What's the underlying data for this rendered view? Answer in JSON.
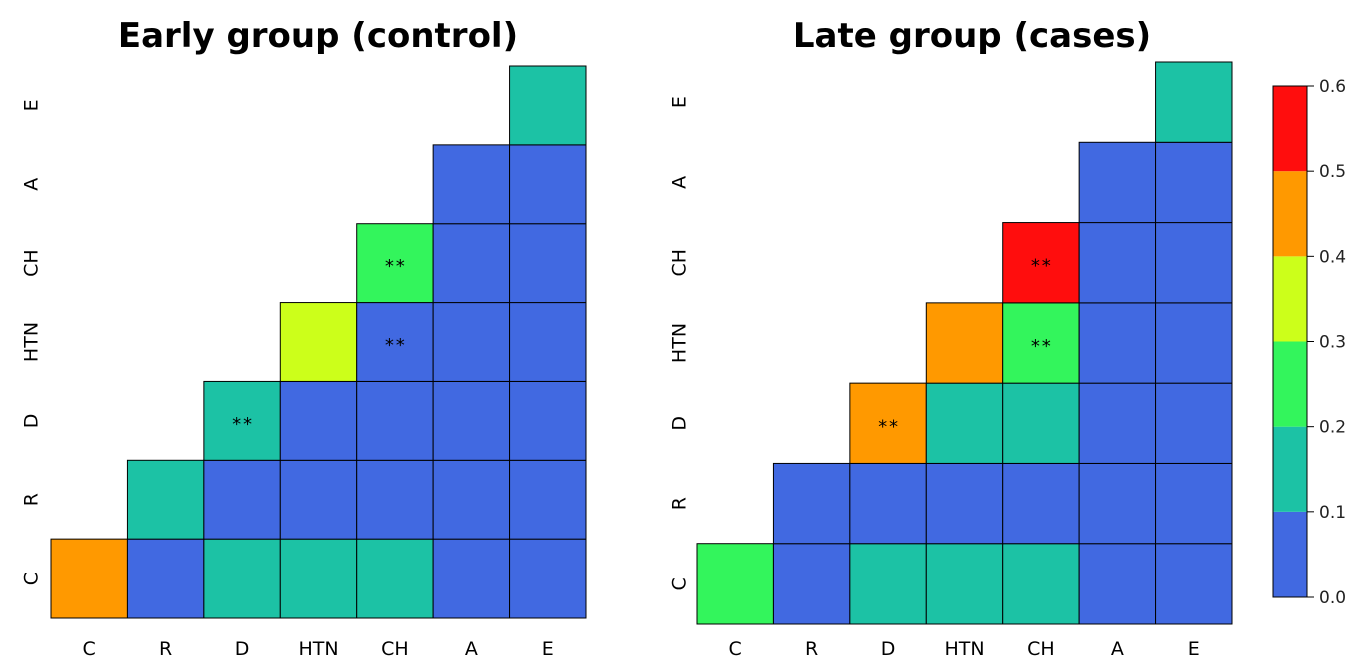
{
  "chart_data": [
    {
      "type": "heatmap",
      "title": "Early group (control)",
      "x_labels": [
        "C",
        "R",
        "D",
        "HTN",
        "CH",
        "A",
        "E"
      ],
      "y_labels": [
        "C",
        "R",
        "D",
        "HTN",
        "CH",
        "A",
        "E"
      ],
      "values": [
        [
          0.45,
          0.05,
          0.15,
          0.15,
          0.15,
          0.05,
          0.05
        ],
        [
          null,
          0.15,
          0.05,
          0.05,
          0.05,
          0.05,
          0.05
        ],
        [
          null,
          null,
          0.15,
          0.05,
          0.05,
          0.05,
          0.05
        ],
        [
          null,
          null,
          null,
          0.35,
          0.05,
          0.05,
          0.05
        ],
        [
          null,
          null,
          null,
          null,
          0.25,
          0.05,
          0.05
        ],
        [
          null,
          null,
          null,
          null,
          null,
          0.05,
          0.05
        ],
        [
          null,
          null,
          null,
          null,
          null,
          null,
          0.15
        ]
      ],
      "annotations": [
        {
          "x": "D",
          "y": "D",
          "text": "**"
        },
        {
          "x": "CH",
          "y": "HTN",
          "text": "**"
        },
        {
          "x": "CH",
          "y": "CH",
          "text": "**"
        }
      ]
    },
    {
      "type": "heatmap",
      "title": "Late group (cases)",
      "x_labels": [
        "C",
        "R",
        "D",
        "HTN",
        "CH",
        "A",
        "E"
      ],
      "y_labels": [
        "C",
        "R",
        "D",
        "HTN",
        "CH",
        "A",
        "E"
      ],
      "values": [
        [
          0.25,
          0.05,
          0.15,
          0.15,
          0.15,
          0.05,
          0.05
        ],
        [
          null,
          0.05,
          0.05,
          0.05,
          0.05,
          0.05,
          0.05
        ],
        [
          null,
          null,
          0.45,
          0.15,
          0.15,
          0.05,
          0.05
        ],
        [
          null,
          null,
          null,
          0.45,
          0.25,
          0.05,
          0.05
        ],
        [
          null,
          null,
          null,
          null,
          0.55,
          0.05,
          0.05
        ],
        [
          null,
          null,
          null,
          null,
          null,
          0.05,
          0.05
        ],
        [
          null,
          null,
          null,
          null,
          null,
          null,
          0.15
        ]
      ],
      "annotations": [
        {
          "x": "D",
          "y": "D",
          "text": "**"
        },
        {
          "x": "CH",
          "y": "HTN",
          "text": "**"
        },
        {
          "x": "CH",
          "y": "CH",
          "text": "**"
        }
      ]
    }
  ],
  "colorbar": {
    "range": [
      0,
      0.6
    ],
    "ticks": [
      "0.0",
      "0.1",
      "0.2",
      "0.3",
      "0.4",
      "0.5",
      "0.6"
    ],
    "bins": [
      {
        "min": 0.0,
        "max": 0.1,
        "color": "#4169E1"
      },
      {
        "min": 0.1,
        "max": 0.2,
        "color": "#1CC2A5"
      },
      {
        "min": 0.2,
        "max": 0.3,
        "color": "#33F55C"
      },
      {
        "min": 0.3,
        "max": 0.4,
        "color": "#CCFF1A"
      },
      {
        "min": 0.4,
        "max": 0.5,
        "color": "#FF9900"
      },
      {
        "min": 0.5,
        "max": 0.6,
        "color": "#FF0D0D"
      }
    ]
  }
}
